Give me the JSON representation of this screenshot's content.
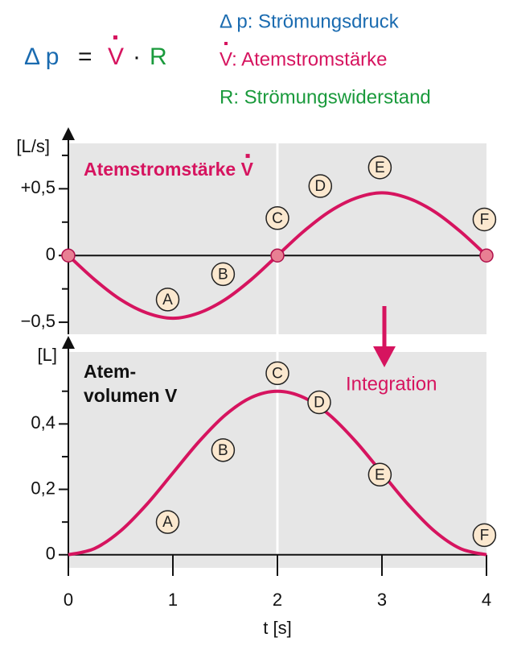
{
  "header": {
    "formula": [
      {
        "text": "Δ p",
        "color": "#1a6bb0"
      },
      {
        "text": "=",
        "color": "#111111"
      },
      {
        "text": "V",
        "color": "#d6145f"
      },
      {
        "text": "·",
        "color": "#111111"
      },
      {
        "text": "R",
        "color": "#1a9a3c"
      }
    ],
    "legend": [
      {
        "text": "Δ p: Strömungsdruck",
        "color": "#1a6bb0"
      },
      {
        "text": "V: Atemstromstärke",
        "color": "#d6145f"
      },
      {
        "text": "R: Strömungswiderstand",
        "color": "#1a9a3c"
      }
    ]
  },
  "integration_label": "Integration",
  "chart_data": [
    {
      "type": "line",
      "title": "Atemstromstärke V",
      "title_color": "#d6145f",
      "ylabel": "[L/s]",
      "x": [
        0,
        0.25,
        0.5,
        0.75,
        1,
        1.25,
        1.5,
        1.75,
        2,
        2.25,
        2.5,
        2.75,
        3,
        3.25,
        3.5,
        3.75,
        4
      ],
      "series": [
        {
          "color": "#d6145f",
          "values": [
            0,
            -0.18,
            -0.33,
            -0.43,
            -0.47,
            -0.43,
            -0.33,
            -0.18,
            0,
            0.18,
            0.33,
            0.43,
            0.47,
            0.43,
            0.33,
            0.18,
            0
          ],
          "points": {
            "x": [
              0,
              2,
              4
            ],
            "values": [
              0,
              0,
              0
            ],
            "color": "#e87f93"
          }
        }
      ],
      "xlim": [
        0,
        4
      ],
      "ylim": [
        -0.59,
        0.84
      ],
      "yticks": [
        {
          "value": 0.5,
          "label": "+0,5"
        },
        0,
        {
          "value": -0.5,
          "label": "−0,5"
        }
      ],
      "minor_yticks": [
        0.75,
        0.25,
        -0.25
      ],
      "xgrid": [
        2
      ],
      "annotations": [
        {
          "text": "A",
          "x": 0.95,
          "y": -0.33
        },
        {
          "text": "B",
          "x": 1.48,
          "y": -0.14
        },
        {
          "text": "C",
          "x": 2,
          "y": 0.28
        },
        {
          "text": "D",
          "x": 2.41,
          "y": 0.52
        },
        {
          "text": "E",
          "x": 2.98,
          "y": 0.66
        },
        {
          "text": "F",
          "x": 3.98,
          "y": 0.27
        }
      ]
    },
    {
      "type": "line",
      "title_lines": [
        "Atem-",
        "volumen V"
      ],
      "title_color": "#111111",
      "ylabel": "[L]",
      "xlabel": "t [s]",
      "x": [
        0,
        0.25,
        0.5,
        0.75,
        1,
        1.25,
        1.5,
        1.75,
        2,
        2.25,
        2.5,
        2.75,
        3,
        3.25,
        3.5,
        3.75,
        4
      ],
      "series": [
        {
          "color": "#d6145f",
          "values": [
            0,
            0.019,
            0.073,
            0.154,
            0.25,
            0.346,
            0.427,
            0.481,
            0.5,
            0.481,
            0.427,
            0.346,
            0.25,
            0.154,
            0.073,
            0.019,
            0
          ]
        }
      ],
      "xlim": [
        0,
        4
      ],
      "ylim": [
        -0.04,
        0.62
      ],
      "xticks": [
        0,
        1,
        2,
        3,
        4
      ],
      "yticks": [
        0,
        {
          "value": 0.2,
          "label": "0,2"
        },
        {
          "value": 0.4,
          "label": "0,4"
        }
      ],
      "minor_yticks": [
        0.1,
        0.3,
        0.5
      ],
      "xgrid": [
        2
      ],
      "annotations": [
        {
          "text": "A",
          "x": 0.95,
          "y": 0.1
        },
        {
          "text": "B",
          "x": 1.48,
          "y": 0.32
        },
        {
          "text": "C",
          "x": 2,
          "y": 0.555
        },
        {
          "text": "D",
          "x": 2.4,
          "y": 0.466
        },
        {
          "text": "E",
          "x": 2.98,
          "y": 0.245
        },
        {
          "text": "F",
          "x": 3.98,
          "y": 0.06
        }
      ]
    }
  ]
}
